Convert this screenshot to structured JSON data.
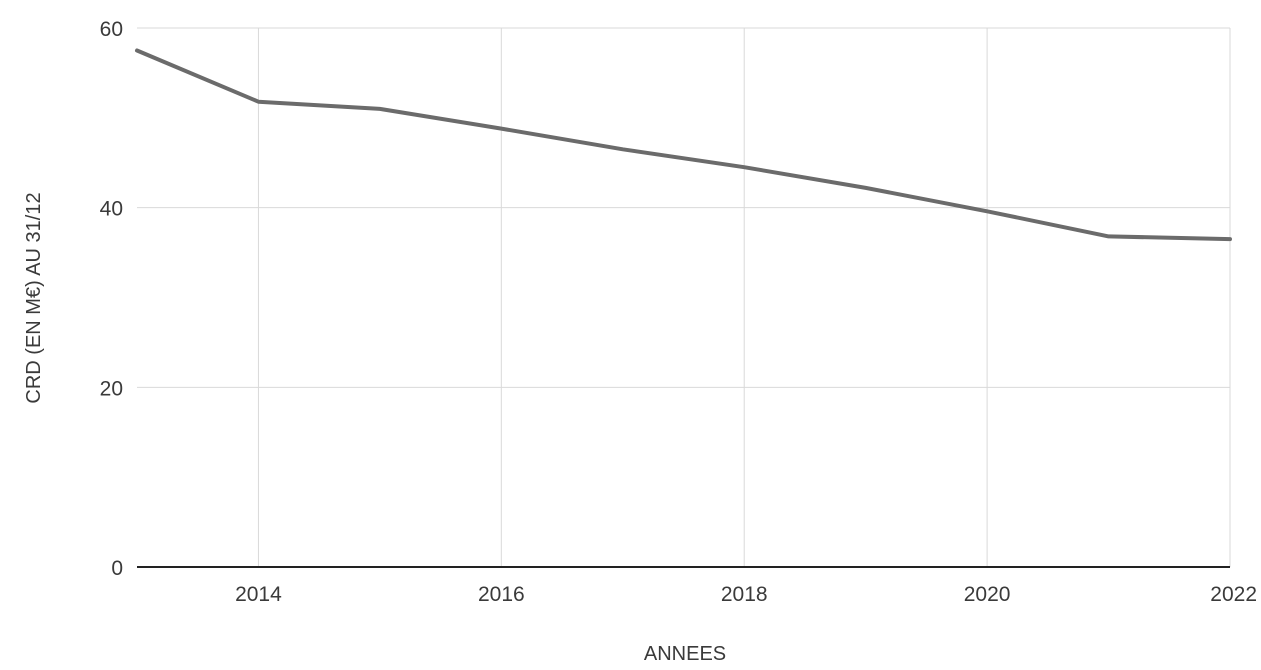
{
  "chart_data": {
    "type": "line",
    "xlabel": "ANNEES",
    "ylabel": "CRD (EN M€) AU 31/12",
    "xlim": [
      2013,
      2022
    ],
    "ylim": [
      0,
      60
    ],
    "x_ticks": [
      2014,
      2016,
      2018,
      2020,
      2022
    ],
    "y_ticks": [
      0,
      20,
      40,
      60
    ],
    "grid": true,
    "x_grid": [
      2014,
      2016,
      2018,
      2020,
      2022
    ],
    "series": [
      {
        "color": "#6b6b6b",
        "x": [
          2013,
          2014,
          2015,
          2016,
          2017,
          2018,
          2019,
          2020,
          2021,
          2022
        ],
        "values": [
          57.5,
          51.8,
          51.0,
          48.8,
          46.5,
          44.5,
          42.2,
          39.6,
          36.8,
          36.5
        ]
      }
    ]
  }
}
